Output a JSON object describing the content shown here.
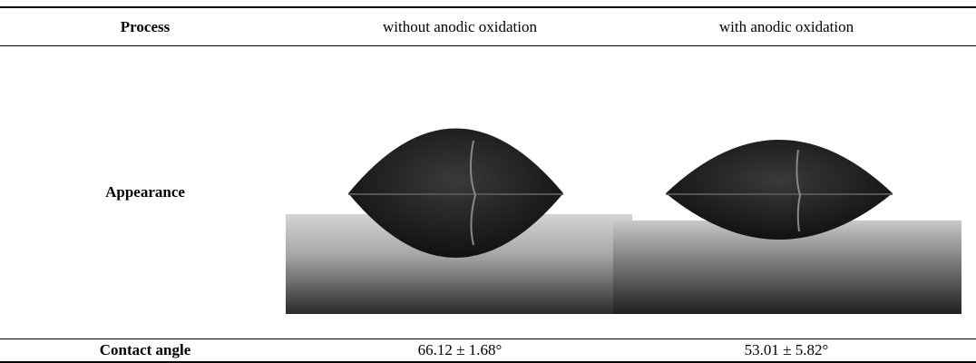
{
  "table": {
    "header": [
      "Process",
      "without anodic oxidation",
      "with anodic oxidation"
    ],
    "rows": [
      {
        "label": "Appearance"
      },
      {
        "label": "Contact angle",
        "values": [
          "66.12 ± 1.68°",
          "53.01 ± 5.82°"
        ]
      }
    ]
  }
}
